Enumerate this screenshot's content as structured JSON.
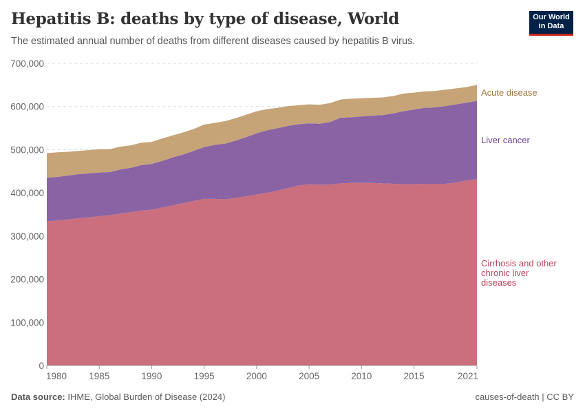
{
  "header": {
    "title": "Hepatitis B: deaths by type of disease, World",
    "subtitle": "The estimated annual number of deaths from different diseases caused by hepatitis B virus.",
    "logo_line1": "Our World",
    "logo_line2": "in Data"
  },
  "footer": {
    "source_label": "Data source:",
    "source_text": "IHME, Global Burden of Disease (2024)",
    "right": "causes-of-death | CC BY"
  },
  "chart_data": {
    "type": "area",
    "stacked": true,
    "title": "Hepatitis B: deaths by type of disease, World",
    "ylim": [
      0,
      700000
    ],
    "xlim": [
      1980,
      2021
    ],
    "yticks": [
      0,
      100000,
      200000,
      300000,
      400000,
      500000,
      600000,
      700000
    ],
    "ytick_labels": [
      "0",
      "100,000",
      "200,000",
      "300,000",
      "400,000",
      "500,000",
      "600,000",
      "700,000"
    ],
    "xticks": [
      1980,
      1985,
      1990,
      1995,
      2000,
      2005,
      2010,
      2015,
      2021
    ],
    "xtick_labels": [
      "1980",
      "1985",
      "1990",
      "1995",
      "2000",
      "2005",
      "2010",
      "2015",
      "2021"
    ],
    "grid": "horizontal dashed",
    "legend": "right (inline labels)",
    "x": [
      1980,
      1981,
      1982,
      1983,
      1984,
      1985,
      1986,
      1987,
      1988,
      1989,
      1990,
      1991,
      1992,
      1993,
      1994,
      1995,
      1996,
      1997,
      1998,
      1999,
      2000,
      2001,
      2002,
      2003,
      2004,
      2005,
      2006,
      2007,
      2008,
      2009,
      2010,
      2011,
      2012,
      2013,
      2014,
      2015,
      2016,
      2017,
      2018,
      2019,
      2020,
      2021
    ],
    "series": [
      {
        "name": "Cirrhosis and other chronic liver diseases",
        "color": "#cb6f7f",
        "label_color": "#c2415a",
        "values": [
          334000,
          336000,
          338000,
          341000,
          343000,
          346000,
          348000,
          352000,
          355000,
          359000,
          361000,
          366000,
          371000,
          376000,
          381000,
          386000,
          386000,
          385000,
          388000,
          392000,
          396000,
          400000,
          405000,
          411000,
          417000,
          420000,
          419000,
          419000,
          422000,
          423000,
          423000,
          423000,
          422000,
          421000,
          420000,
          420000,
          421000,
          421000,
          421000,
          424000,
          429000,
          432000
        ]
      },
      {
        "name": "Liver cancer",
        "color": "#8a63a5",
        "label_color": "#6d3e91",
        "values": [
          101000,
          101000,
          102000,
          102000,
          102000,
          101000,
          100000,
          102000,
          103000,
          105000,
          106000,
          108000,
          111000,
          113000,
          116000,
          120000,
          125000,
          129000,
          133000,
          137000,
          142000,
          145000,
          145000,
          144000,
          142000,
          141000,
          141000,
          145000,
          152000,
          152000,
          154000,
          156000,
          158000,
          163000,
          169000,
          173000,
          176000,
          177000,
          180000,
          181000,
          180000,
          181000
        ]
      },
      {
        "name": "Acute disease",
        "color": "#c6a478",
        "label_color": "#a2773f",
        "values": [
          57000,
          57000,
          55000,
          54000,
          54000,
          54000,
          53000,
          53000,
          52000,
          52000,
          51000,
          52000,
          51000,
          51000,
          51000,
          52000,
          51000,
          52000,
          52000,
          52000,
          51000,
          49000,
          47000,
          46000,
          44000,
          44000,
          44000,
          44000,
          42000,
          43000,
          42000,
          41000,
          41000,
          40000,
          41000,
          39000,
          38000,
          38000,
          38000,
          37000,
          36000,
          37000
        ]
      }
    ]
  }
}
